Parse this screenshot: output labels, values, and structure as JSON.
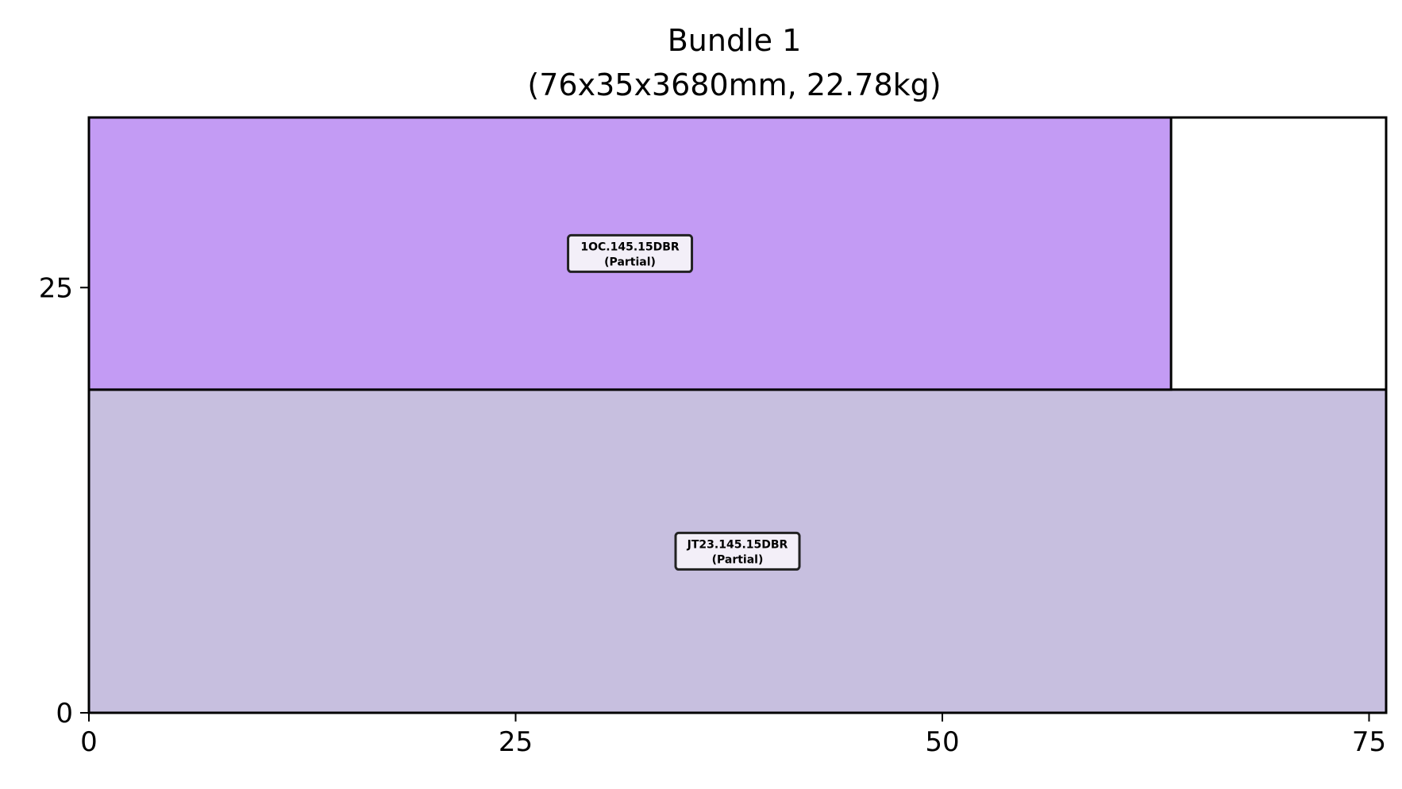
{
  "chart_data": {
    "type": "rectangle-packing",
    "title": "Bundle 1",
    "subtitle": "(76x35x3680mm, 22.78kg)",
    "xlabel": "",
    "ylabel": "",
    "xlim": [
      0,
      76
    ],
    "ylim": [
      0,
      35
    ],
    "xticks": [
      0,
      25,
      50,
      75
    ],
    "yticks": [
      0,
      25
    ],
    "grid": false,
    "pieces": [
      {
        "name": "JT23.145.15DBR",
        "status": "(Partial)",
        "x": 0,
        "y": 0,
        "width": 76,
        "height": 19,
        "color": "#c7bfdf"
      },
      {
        "name": "1OC.145.15DBR",
        "status": "(Partial)",
        "x": 0,
        "y": 19,
        "width": 63.4,
        "height": 16,
        "color": "#c39bf4"
      }
    ],
    "label_box_color": "#f3eff8",
    "edge_color": "#000000"
  }
}
